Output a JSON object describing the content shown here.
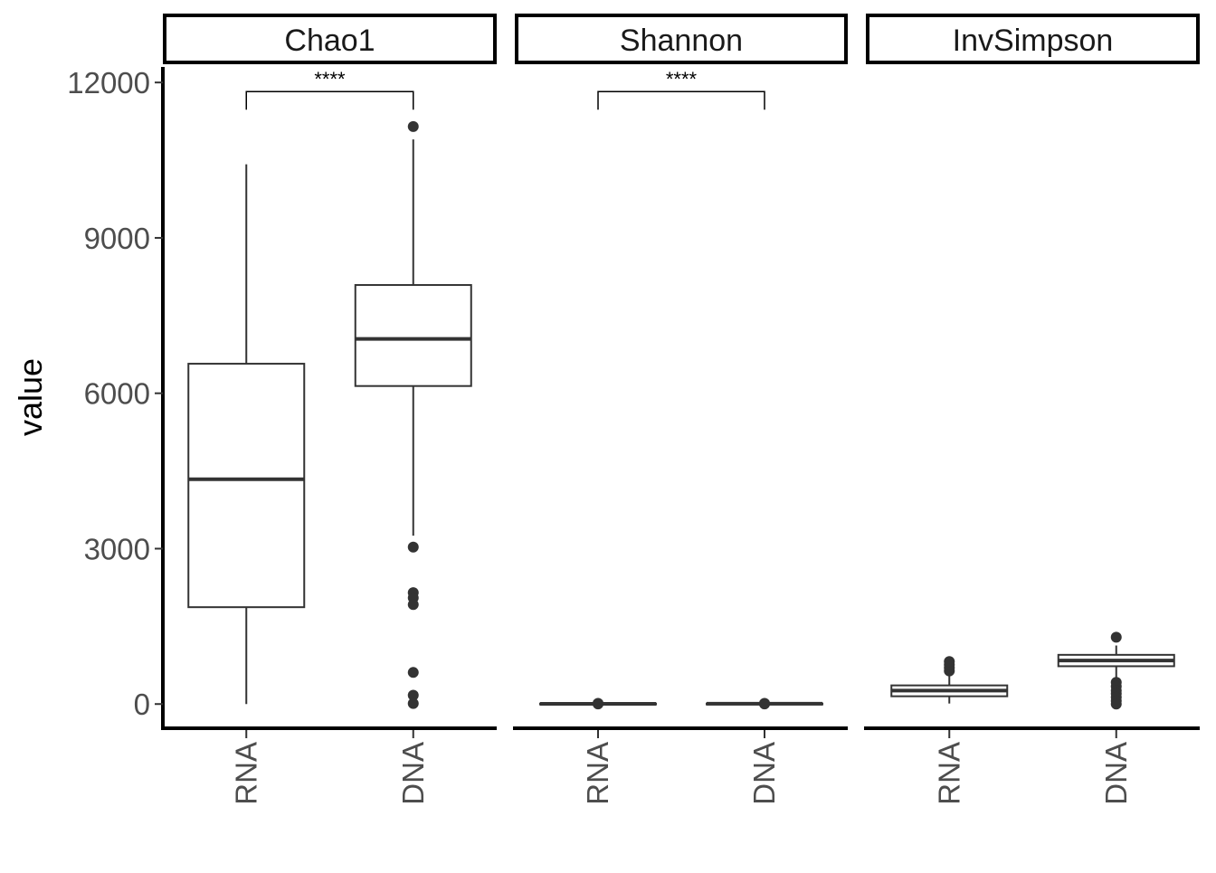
{
  "chart_data": {
    "type": "boxplot",
    "ylabel": "value",
    "xlabel": "",
    "ylim": [
      -450,
      12300
    ],
    "y_ticks": [
      0,
      3000,
      6000,
      9000,
      12000
    ],
    "y_tick_labels": [
      "0",
      "3000",
      "6000",
      "9000",
      "12000"
    ],
    "categories": [
      "RNA",
      "DNA"
    ],
    "grid": false,
    "colors": {
      "box_line": "#333333",
      "axis": "#000000",
      "strip_border": "#000000"
    },
    "panels": [
      {
        "name": "Chao1",
        "boxes": [
          {
            "category": "RNA",
            "min": 0,
            "q1": 1870,
            "median": 4340,
            "q3": 6570,
            "max": 10420,
            "outliers": []
          },
          {
            "category": "DNA",
            "min": 3250,
            "q1": 6140,
            "median": 7050,
            "q3": 8090,
            "max": 10900,
            "outliers": [
              11150,
              3030,
              2150,
              2050,
              1920,
              610,
              170,
              10
            ]
          }
        ],
        "comparison": {
          "label": "****",
          "y": 11650
        }
      },
      {
        "name": "Shannon",
        "boxes": [
          {
            "category": "RNA",
            "min": 0,
            "q1": 0,
            "median": 5,
            "q3": 10,
            "max": 10,
            "outliers": [
              12,
              8,
              2
            ]
          },
          {
            "category": "DNA",
            "min": 0,
            "q1": 0,
            "median": 6,
            "q3": 10,
            "max": 10,
            "outliers": [
              13,
              9,
              2
            ]
          }
        ],
        "comparison": {
          "label": "****",
          "y": 11650
        }
      },
      {
        "name": "InvSimpson",
        "boxes": [
          {
            "category": "RNA",
            "min": 10,
            "q1": 150,
            "median": 260,
            "q3": 360,
            "max": 560,
            "outliers": [
              640,
              700,
              760,
              820
            ]
          },
          {
            "category": "DNA",
            "min": 480,
            "q1": 730,
            "median": 840,
            "q3": 950,
            "max": 1130,
            "outliers": [
              1290,
              420,
              340,
              260,
              200,
              130,
              60,
              0
            ]
          }
        ],
        "comparison": null
      }
    ]
  }
}
